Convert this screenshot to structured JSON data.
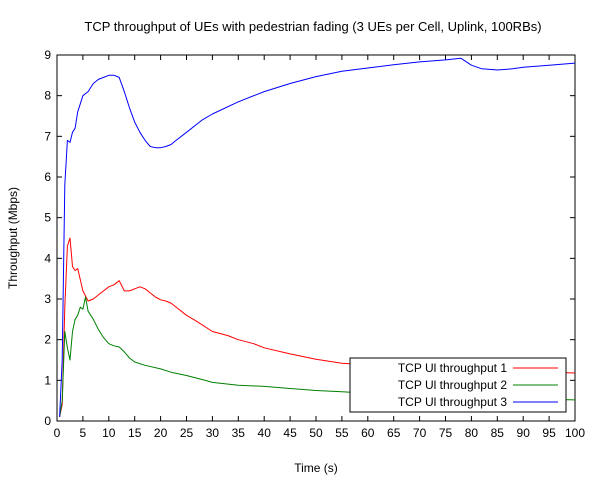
{
  "chart_data": {
    "type": "line",
    "title": "TCP throughput of UEs with pedestrian fading (3 UEs per Cell, Uplink, 100RBs)",
    "xlabel": "Time (s)",
    "ylabel": "Throughput (Mbps)",
    "xlim": [
      0,
      100
    ],
    "ylim": [
      0,
      9
    ],
    "xticks": [
      0,
      5,
      10,
      15,
      20,
      25,
      30,
      35,
      40,
      45,
      50,
      55,
      60,
      65,
      70,
      75,
      80,
      85,
      90,
      95,
      100
    ],
    "yticks": [
      0,
      1,
      2,
      3,
      4,
      5,
      6,
      7,
      8,
      9
    ],
    "grid": false,
    "legend_position": "bottom-right",
    "series": [
      {
        "name": "TCP Ul throughput 1",
        "color": "#ff0000",
        "x": [
          0.5,
          1,
          1.5,
          2,
          2.5,
          3,
          3.5,
          4,
          5,
          6,
          7,
          8,
          9,
          10,
          11,
          12,
          13,
          14,
          15,
          16,
          17,
          18,
          19,
          20,
          21,
          22,
          23,
          25,
          27,
          30,
          33,
          35,
          38,
          40,
          45,
          50,
          55,
          60,
          65,
          70,
          75,
          80,
          85,
          90,
          95,
          100
        ],
        "y": [
          0.1,
          0.4,
          2.8,
          4.3,
          4.5,
          3.8,
          3.7,
          3.75,
          3.2,
          2.95,
          3.0,
          3.1,
          3.2,
          3.3,
          3.35,
          3.45,
          3.2,
          3.2,
          3.25,
          3.3,
          3.25,
          3.15,
          3.05,
          2.98,
          2.95,
          2.9,
          2.8,
          2.6,
          2.45,
          2.2,
          2.1,
          2.0,
          1.9,
          1.8,
          1.65,
          1.52,
          1.42,
          1.38,
          1.35,
          1.3,
          1.27,
          1.24,
          1.22,
          1.2,
          1.2,
          1.18
        ]
      },
      {
        "name": "TCP Ul throughput 2",
        "color": "#008000",
        "x": [
          0.5,
          1,
          1.5,
          2,
          2.5,
          3,
          3.5,
          4,
          4.5,
          5,
          5.5,
          6,
          7,
          8,
          9,
          10,
          11,
          12,
          13,
          14,
          15,
          17,
          20,
          22,
          25,
          28,
          30,
          35,
          40,
          45,
          50,
          55,
          60,
          65,
          70,
          75,
          80,
          85,
          90,
          95,
          100
        ],
        "y": [
          0.1,
          0.5,
          2.2,
          1.8,
          1.5,
          2.2,
          2.5,
          2.6,
          2.8,
          2.75,
          3.05,
          2.7,
          2.5,
          2.25,
          2.05,
          1.9,
          1.85,
          1.82,
          1.7,
          1.55,
          1.45,
          1.37,
          1.28,
          1.2,
          1.12,
          1.02,
          0.95,
          0.88,
          0.85,
          0.8,
          0.75,
          0.72,
          0.68,
          0.65,
          0.62,
          0.6,
          0.58,
          0.56,
          0.55,
          0.53,
          0.52
        ]
      },
      {
        "name": "TCP Ul throughput 3",
        "color": "#0000ff",
        "x": [
          0.5,
          1,
          1.5,
          2,
          2.5,
          3,
          3.5,
          4,
          4.5,
          5,
          6,
          7,
          8,
          9,
          10,
          11,
          12,
          13,
          14,
          15,
          16,
          17,
          18,
          19,
          20,
          21,
          22,
          23,
          25,
          28,
          30,
          35,
          40,
          45,
          50,
          55,
          60,
          65,
          70,
          75,
          78,
          80,
          82,
          85,
          88,
          90,
          95,
          100
        ],
        "y": [
          0.1,
          1.5,
          5.8,
          6.9,
          6.85,
          7.1,
          7.2,
          7.6,
          7.8,
          8.0,
          8.1,
          8.3,
          8.4,
          8.45,
          8.5,
          8.5,
          8.45,
          8.1,
          7.7,
          7.35,
          7.1,
          6.9,
          6.75,
          6.72,
          6.72,
          6.75,
          6.8,
          6.9,
          7.1,
          7.4,
          7.55,
          7.85,
          8.1,
          8.3,
          8.47,
          8.6,
          8.68,
          8.76,
          8.83,
          8.88,
          8.92,
          8.75,
          8.66,
          8.63,
          8.66,
          8.7,
          8.75,
          8.8
        ]
      }
    ]
  }
}
